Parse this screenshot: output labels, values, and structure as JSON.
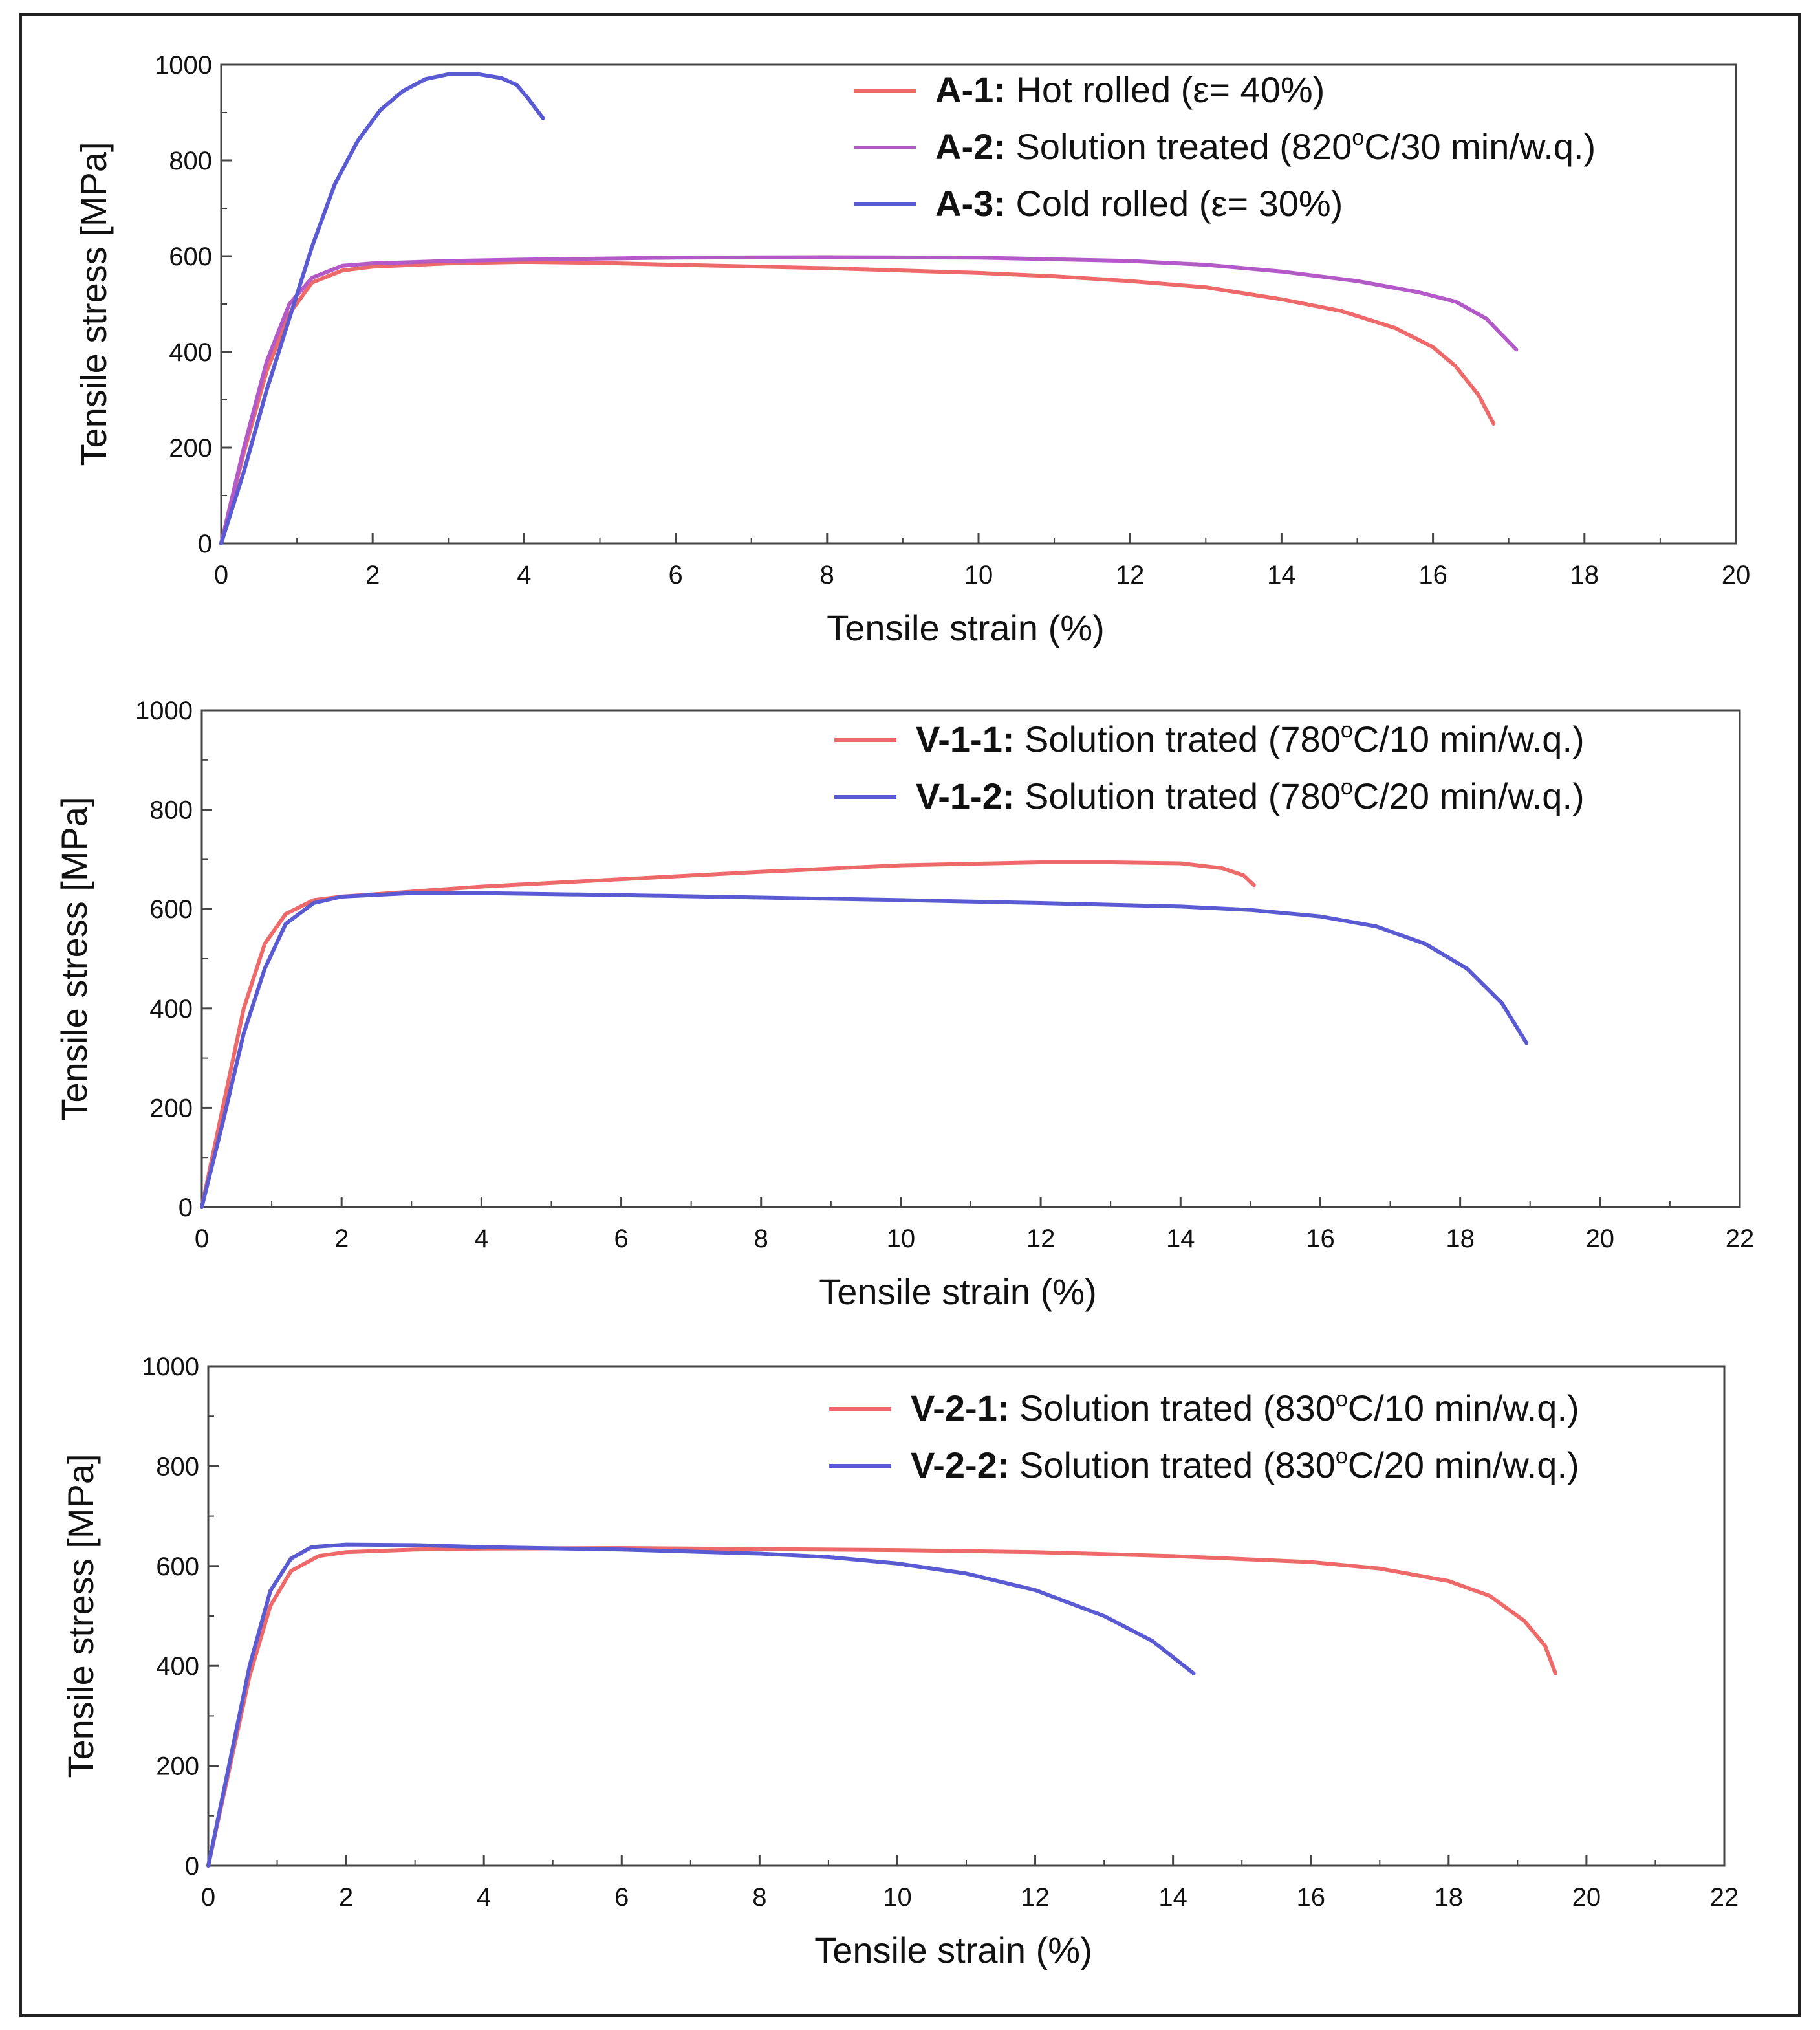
{
  "chart_data": [
    {
      "type": "line",
      "xlabel": "Tensile strain (%)",
      "ylabel": "Tensile stress [MPa]",
      "xlim": [
        0,
        20
      ],
      "ylim": [
        0,
        1000
      ],
      "xticks": [
        0,
        2,
        4,
        6,
        8,
        10,
        12,
        14,
        16,
        18,
        20
      ],
      "yticks": [
        0,
        200,
        400,
        600,
        800,
        1000
      ],
      "legend_position": "top-right",
      "series": [
        {
          "key": "A-1:",
          "desc_pre": " Hot rolled (ε= 40%)",
          "sup": "",
          "desc_post": "",
          "color": "#ee6a6a",
          "points": [
            [
              0,
              0
            ],
            [
              0.3,
              190
            ],
            [
              0.6,
              360
            ],
            [
              0.9,
              480
            ],
            [
              1.2,
              545
            ],
            [
              1.6,
              570
            ],
            [
              2,
              578
            ],
            [
              3,
              585
            ],
            [
              4,
              588
            ],
            [
              5,
              586
            ],
            [
              6,
              582
            ],
            [
              8,
              575
            ],
            [
              10,
              565
            ],
            [
              11,
              558
            ],
            [
              12,
              548
            ],
            [
              13,
              535
            ],
            [
              14,
              510
            ],
            [
              14.8,
              485
            ],
            [
              15.5,
              450
            ],
            [
              16,
              410
            ],
            [
              16.3,
              370
            ],
            [
              16.6,
              310
            ],
            [
              16.8,
              250
            ]
          ]
        },
        {
          "key": "A-2:",
          "desc_pre": " Solution treated (820",
          "sup": "o",
          "desc_post": "C/30 min/w.q.)",
          "color": "#b45ac8",
          "points": [
            [
              0,
              0
            ],
            [
              0.3,
              200
            ],
            [
              0.6,
              380
            ],
            [
              0.9,
              500
            ],
            [
              1.2,
              555
            ],
            [
              1.6,
              580
            ],
            [
              2,
              585
            ],
            [
              3,
              590
            ],
            [
              4,
              593
            ],
            [
              6,
              597
            ],
            [
              8,
              598
            ],
            [
              10,
              597
            ],
            [
              12,
              590
            ],
            [
              13,
              582
            ],
            [
              14,
              568
            ],
            [
              15,
              548
            ],
            [
              15.8,
              525
            ],
            [
              16.3,
              505
            ],
            [
              16.7,
              470
            ],
            [
              17.1,
              405
            ]
          ]
        },
        {
          "key": "A-3:",
          "desc_pre": " Cold rolled (ε= 30%)",
          "sup": "",
          "desc_post": "",
          "color": "#5a5ad2",
          "points": [
            [
              0,
              0
            ],
            [
              0.3,
              150
            ],
            [
              0.6,
              320
            ],
            [
              0.9,
              470
            ],
            [
              1.2,
              620
            ],
            [
              1.5,
              750
            ],
            [
              1.8,
              840
            ],
            [
              2.1,
              905
            ],
            [
              2.4,
              945
            ],
            [
              2.7,
              970
            ],
            [
              3,
              980
            ],
            [
              3.4,
              980
            ],
            [
              3.7,
              972
            ],
            [
              3.9,
              958
            ],
            [
              4.05,
              930
            ],
            [
              4.25,
              888
            ]
          ]
        }
      ]
    },
    {
      "type": "line",
      "xlabel": "Tensile strain (%)",
      "ylabel": "Tensile stress [MPa]",
      "xlim": [
        0,
        22
      ],
      "ylim": [
        0,
        1000
      ],
      "xticks": [
        0,
        2,
        4,
        6,
        8,
        10,
        12,
        14,
        16,
        18,
        20,
        22
      ],
      "yticks": [
        0,
        200,
        400,
        600,
        800,
        1000
      ],
      "legend_position": "top-right",
      "series": [
        {
          "key": "V-1-1:",
          "desc_pre": " Solution trated (780",
          "sup": "o",
          "desc_post": "C/10 min/w.q.)",
          "color": "#ee6a6a",
          "points": [
            [
              0,
              0
            ],
            [
              0.3,
              200
            ],
            [
              0.6,
              400
            ],
            [
              0.9,
              530
            ],
            [
              1.2,
              590
            ],
            [
              1.6,
              618
            ],
            [
              2,
              625
            ],
            [
              3,
              635
            ],
            [
              4,
              645
            ],
            [
              6,
              660
            ],
            [
              8,
              675
            ],
            [
              10,
              688
            ],
            [
              12,
              694
            ],
            [
              13,
              694
            ],
            [
              14,
              692
            ],
            [
              14.6,
              682
            ],
            [
              14.9,
              668
            ],
            [
              15.05,
              648
            ]
          ]
        },
        {
          "key": "V-1-2:",
          "desc_pre": " Solution trated (780",
          "sup": "o",
          "desc_post": "C/20 min/w.q.)",
          "color": "#5a5ad2",
          "points": [
            [
              0,
              0
            ],
            [
              0.3,
              170
            ],
            [
              0.6,
              350
            ],
            [
              0.9,
              480
            ],
            [
              1.2,
              570
            ],
            [
              1.6,
              612
            ],
            [
              2,
              625
            ],
            [
              3,
              632
            ],
            [
              4,
              632
            ],
            [
              6,
              628
            ],
            [
              8,
              623
            ],
            [
              10,
              618
            ],
            [
              12,
              612
            ],
            [
              14,
              605
            ],
            [
              15,
              598
            ],
            [
              16,
              585
            ],
            [
              16.8,
              565
            ],
            [
              17.5,
              530
            ],
            [
              18.1,
              480
            ],
            [
              18.6,
              410
            ],
            [
              18.95,
              330
            ]
          ]
        }
      ]
    },
    {
      "type": "line",
      "xlabel": "Tensile strain (%)",
      "ylabel": "Tensile stress [MPa]",
      "xlim": [
        0,
        22
      ],
      "ylim": [
        0,
        1000
      ],
      "xticks": [
        0,
        2,
        4,
        6,
        8,
        10,
        12,
        14,
        16,
        18,
        20,
        22
      ],
      "yticks": [
        0,
        200,
        400,
        600,
        800,
        1000
      ],
      "legend_position": "top-right",
      "series": [
        {
          "key": "V-2-1:",
          "desc_pre": " Solution trated (830",
          "sup": "o",
          "desc_post": "C/10 min/w.q.)",
          "color": "#ee6a6a",
          "points": [
            [
              0,
              0
            ],
            [
              0.3,
              190
            ],
            [
              0.6,
              380
            ],
            [
              0.9,
              520
            ],
            [
              1.2,
              590
            ],
            [
              1.6,
              620
            ],
            [
              2,
              628
            ],
            [
              3,
              633
            ],
            [
              4,
              635
            ],
            [
              6,
              636
            ],
            [
              8,
              634
            ],
            [
              10,
              632
            ],
            [
              12,
              628
            ],
            [
              14,
              620
            ],
            [
              16,
              608
            ],
            [
              17,
              595
            ],
            [
              18,
              570
            ],
            [
              18.6,
              540
            ],
            [
              19.1,
              490
            ],
            [
              19.4,
              440
            ],
            [
              19.55,
              385
            ]
          ]
        },
        {
          "key": "V-2-2:",
          "desc_pre": " Solution trated (830",
          "sup": "o",
          "desc_post": "C/20 min/w.q.)",
          "color": "#5a5ad2",
          "points": [
            [
              0,
              0
            ],
            [
              0.3,
              200
            ],
            [
              0.6,
              400
            ],
            [
              0.9,
              550
            ],
            [
              1.2,
              615
            ],
            [
              1.5,
              638
            ],
            [
              2,
              643
            ],
            [
              3,
              642
            ],
            [
              4,
              638
            ],
            [
              6,
              633
            ],
            [
              8,
              625
            ],
            [
              9,
              618
            ],
            [
              10,
              605
            ],
            [
              11,
              585
            ],
            [
              12,
              552
            ],
            [
              13,
              500
            ],
            [
              13.7,
              450
            ],
            [
              14.3,
              385
            ]
          ]
        }
      ]
    }
  ]
}
